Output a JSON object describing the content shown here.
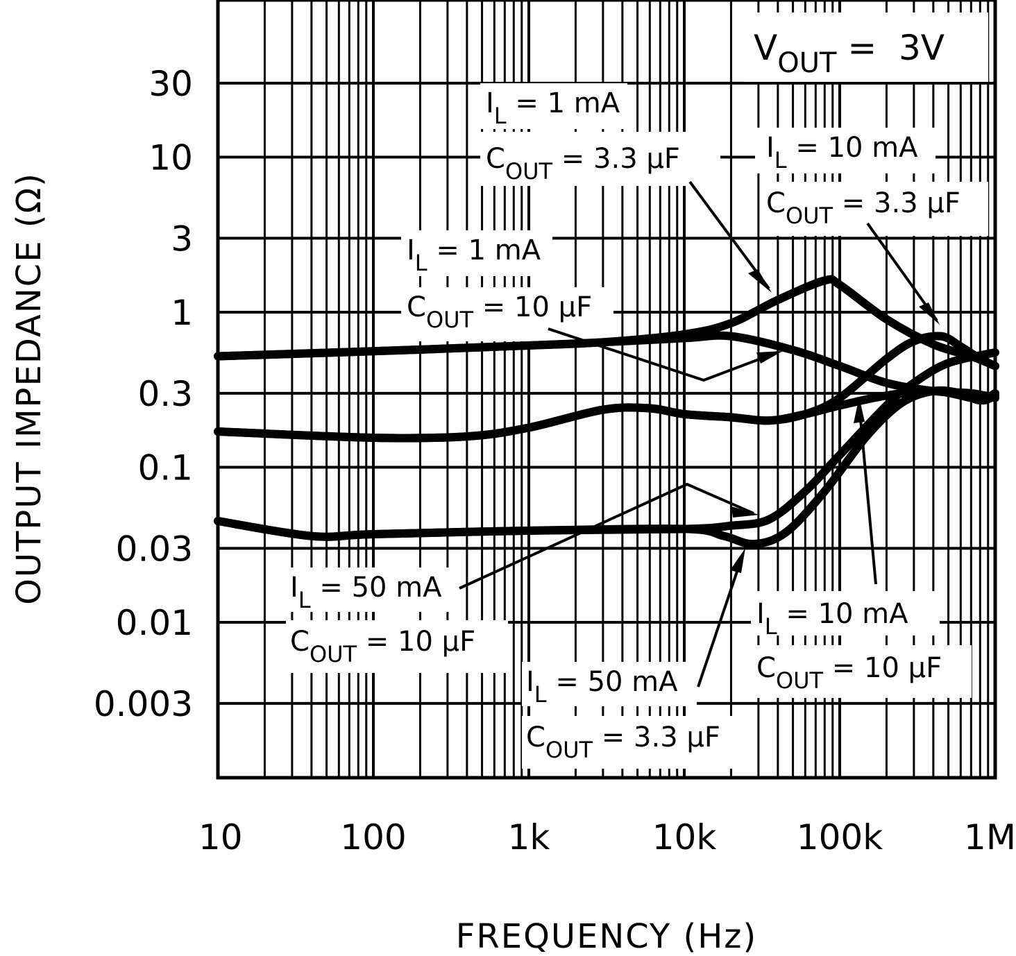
{
  "chart_data": {
    "type": "line",
    "title": "",
    "condition_label": {
      "main": "V",
      "sub": "OUT",
      "rest": " =  3V"
    },
    "xlabel": "FREQUENCY (Hz)",
    "ylabel": "OUTPUT IMPEDANCE (Ω)",
    "xscale": "log",
    "yscale": "log",
    "xlim": [
      10,
      1000000
    ],
    "ylim": [
      0.001,
      100
    ],
    "grid": true,
    "x_ticks": [
      {
        "value": 10,
        "label": "10"
      },
      {
        "value": 100,
        "label": "100"
      },
      {
        "value": 1000,
        "label": "1k"
      },
      {
        "value": 10000,
        "label": "10k"
      },
      {
        "value": 100000,
        "label": "100k"
      },
      {
        "value": 1000000,
        "label": "1M"
      }
    ],
    "y_ticks": [
      {
        "value": 30,
        "label": "30"
      },
      {
        "value": 10,
        "label": "10"
      },
      {
        "value": 3,
        "label": "3"
      },
      {
        "value": 1,
        "label": "1"
      },
      {
        "value": 0.3,
        "label": "0.3"
      },
      {
        "value": 0.1,
        "label": "0.1"
      },
      {
        "value": 0.03,
        "label": "0.03"
      },
      {
        "value": 0.01,
        "label": "0.01"
      },
      {
        "value": 0.003,
        "label": "0.003"
      }
    ],
    "series": [
      {
        "name": "IL = 1 mA, COUT = 3.3 µF",
        "x": [
          10,
          100,
          1000,
          3000,
          10000,
          20000,
          40000,
          80000,
          100000,
          200000,
          400000,
          700000,
          1000000
        ],
        "y": [
          0.52,
          0.56,
          0.61,
          0.64,
          0.72,
          0.85,
          1.2,
          1.6,
          1.5,
          0.9,
          0.62,
          0.52,
          0.45
        ]
      },
      {
        "name": "IL = 1 mA, COUT = 10 µF",
        "x": [
          10,
          100,
          1000,
          3000,
          10000,
          20000,
          50000,
          100000,
          200000,
          400000,
          700000,
          1000000
        ],
        "y": [
          0.52,
          0.56,
          0.61,
          0.64,
          0.68,
          0.7,
          0.57,
          0.45,
          0.35,
          0.31,
          0.3,
          0.28
        ]
      },
      {
        "name": "IL = 10 mA, COUT = 3.3 µF",
        "x": [
          10,
          100,
          400,
          1000,
          3000,
          6000,
          10000,
          20000,
          35000,
          60000,
          100000,
          200000,
          300000,
          450000,
          600000,
          800000,
          1000000
        ],
        "y": [
          0.17,
          0.155,
          0.158,
          0.18,
          0.235,
          0.24,
          0.22,
          0.21,
          0.2,
          0.22,
          0.28,
          0.5,
          0.65,
          0.7,
          0.6,
          0.5,
          0.45
        ]
      },
      {
        "name": "IL = 10 mA, COUT = 10 µF",
        "x": [
          10,
          100,
          400,
          1000,
          3000,
          6000,
          10000,
          20000,
          35000,
          60000,
          100000,
          200000,
          400000,
          700000,
          850000,
          1000000
        ],
        "y": [
          0.17,
          0.155,
          0.158,
          0.18,
          0.235,
          0.24,
          0.22,
          0.21,
          0.2,
          0.22,
          0.25,
          0.29,
          0.31,
          0.28,
          0.27,
          0.29
        ]
      },
      {
        "name": "IL = 50 mA, COUT = 10 µF",
        "x": [
          10,
          40,
          100,
          1000,
          10000,
          20000,
          35000,
          60000,
          100000,
          200000,
          300000,
          500000,
          1000000
        ],
        "y": [
          0.045,
          0.036,
          0.037,
          0.039,
          0.04,
          0.042,
          0.046,
          0.07,
          0.12,
          0.25,
          0.35,
          0.47,
          0.55
        ]
      },
      {
        "name": "IL = 50 mA, COUT = 3.3 µF",
        "x": [
          10,
          40,
          100,
          1000,
          10000,
          18000,
          28000,
          45000,
          80000,
          150000,
          250000,
          400000,
          600000,
          800000,
          1000000
        ],
        "y": [
          0.045,
          0.036,
          0.037,
          0.039,
          0.04,
          0.036,
          0.032,
          0.038,
          0.07,
          0.16,
          0.26,
          0.31,
          0.3,
          0.27,
          0.3
        ]
      }
    ],
    "annotations": [
      {
        "id": "a1",
        "line1": {
          "main": "I",
          "sub": "L",
          "rest": " = 1 mA"
        },
        "line2": {
          "main": "C",
          "sub": "OUT",
          "rest": " = 3.3 µF"
        },
        "target_series": 0
      },
      {
        "id": "a2",
        "line1": {
          "main": "I",
          "sub": "L",
          "rest": " = 10 mA"
        },
        "line2": {
          "main": "C",
          "sub": "OUT",
          "rest": " = 3.3 µF"
        },
        "target_series": 2
      },
      {
        "id": "a3",
        "line1": {
          "main": "I",
          "sub": "L",
          "rest": " = 1 mA"
        },
        "line2": {
          "main": "C",
          "sub": "OUT",
          "rest": " = 10 µF"
        },
        "target_series": 1
      },
      {
        "id": "a4",
        "line1": {
          "main": "I",
          "sub": "L",
          "rest": " = 50 mA"
        },
        "line2": {
          "main": "C",
          "sub": "OUT",
          "rest": " = 10 µF"
        },
        "target_series": 4
      },
      {
        "id": "a5",
        "line1": {
          "main": "I",
          "sub": "L",
          "rest": " = 50 mA"
        },
        "line2": {
          "main": "C",
          "sub": "OUT",
          "rest": " = 3.3 µF"
        },
        "target_series": 5
      },
      {
        "id": "a6",
        "line1": {
          "main": "I",
          "sub": "L",
          "rest": " = 10 mA"
        },
        "line2": {
          "main": "C",
          "sub": "OUT",
          "rest": " = 10 µF"
        },
        "target_series": 3
      }
    ]
  },
  "colors": {
    "line": "#000000",
    "background": "#ffffff",
    "grid": "#000000"
  }
}
